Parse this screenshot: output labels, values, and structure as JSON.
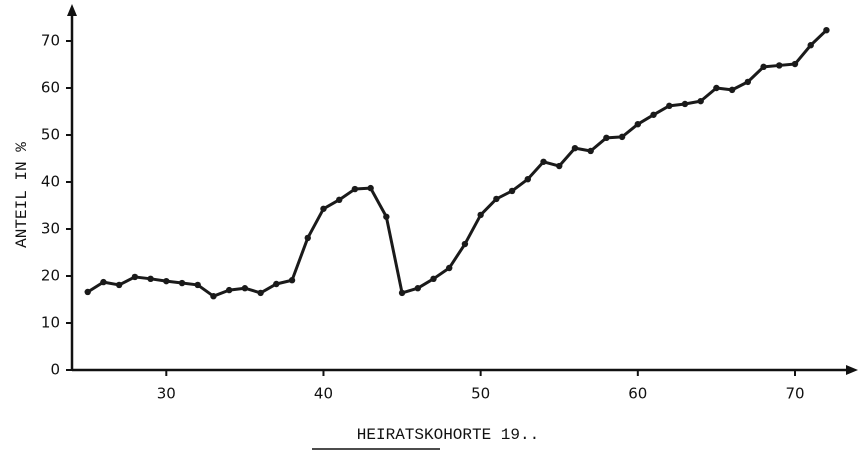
{
  "chart_data": {
    "type": "line",
    "xlabel": "HEIRATSKOHORTE 19..",
    "ylabel": "ANTEIL IN %",
    "x": [
      25,
      26,
      27,
      28,
      29,
      30,
      31,
      32,
      33,
      34,
      35,
      36,
      37,
      38,
      39,
      40,
      41,
      42,
      43,
      44,
      45,
      46,
      47,
      48,
      49,
      50,
      51,
      52,
      53,
      54,
      55,
      56,
      57,
      58,
      59,
      60,
      61,
      62,
      63,
      64,
      65,
      66,
      67,
      68,
      69,
      70,
      71,
      72
    ],
    "series": [
      {
        "name": "Anteil",
        "color": "#1a1a1a",
        "values": [
          16.6,
          18.7,
          18.1,
          19.8,
          19.4,
          18.9,
          18.5,
          18.1,
          15.7,
          17.0,
          17.4,
          16.4,
          18.3,
          19.1,
          28.1,
          34.3,
          36.2,
          38.5,
          38.7,
          32.6,
          16.4,
          17.4,
          19.4,
          21.7,
          26.8,
          33.0,
          36.4,
          38.1,
          40.6,
          44.3,
          43.4,
          47.2,
          46.6,
          49.4,
          49.6,
          52.3,
          54.3,
          56.2,
          56.6,
          57.2,
          60.0,
          59.6,
          61.3,
          64.5,
          64.8,
          65.1,
          69.1,
          72.3
        ]
      }
    ],
    "xlim": [
      24,
      73.5
    ],
    "ylim": [
      0,
      75
    ],
    "xticks": [
      30,
      40,
      50,
      60,
      70
    ],
    "yticks": [
      0,
      10,
      20,
      30,
      40,
      50,
      60,
      70
    ]
  }
}
